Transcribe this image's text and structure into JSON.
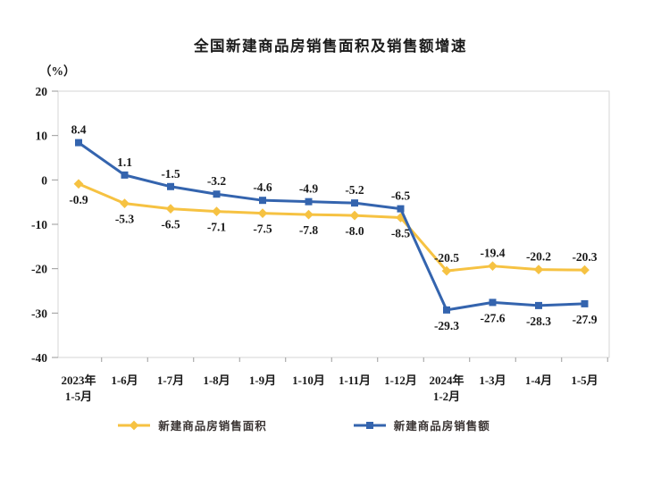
{
  "chart_data": {
    "type": "line",
    "title": "全国新建商品房销售面积及销售额增速",
    "unit_label": "（%）",
    "categories": [
      "2023年\n1-5月",
      "1-6月",
      "1-7月",
      "1-8月",
      "1-9月",
      "1-10月",
      "1-11月",
      "1-12月",
      "2024年\n1-2月",
      "1-3月",
      "1-4月",
      "1-5月"
    ],
    "series": [
      {
        "name": "新建商品房销售面积",
        "color": "#F6C242",
        "marker": "diamond",
        "values": [
          -0.9,
          -5.3,
          -6.5,
          -7.1,
          -7.5,
          -7.8,
          -8.0,
          -8.5,
          -20.5,
          -19.4,
          -20.2,
          -20.3
        ]
      },
      {
        "name": "新建商品房销售额",
        "color": "#3464AE",
        "marker": "square",
        "values": [
          8.4,
          1.1,
          -1.5,
          -3.2,
          -4.6,
          -4.9,
          -5.2,
          -6.5,
          -29.3,
          -27.6,
          -28.3,
          -27.9
        ]
      }
    ],
    "ylim": [
      -40,
      20
    ],
    "yticks": [
      20,
      10,
      0,
      -10,
      -20,
      -30,
      -40
    ],
    "grid": false,
    "legend_position": "bottom",
    "colors": {
      "frame": "#d6d6d6",
      "tick": "#9a9a9a",
      "label_text": "#1a1a1a",
      "axis_text": "#1a1a1a"
    }
  }
}
